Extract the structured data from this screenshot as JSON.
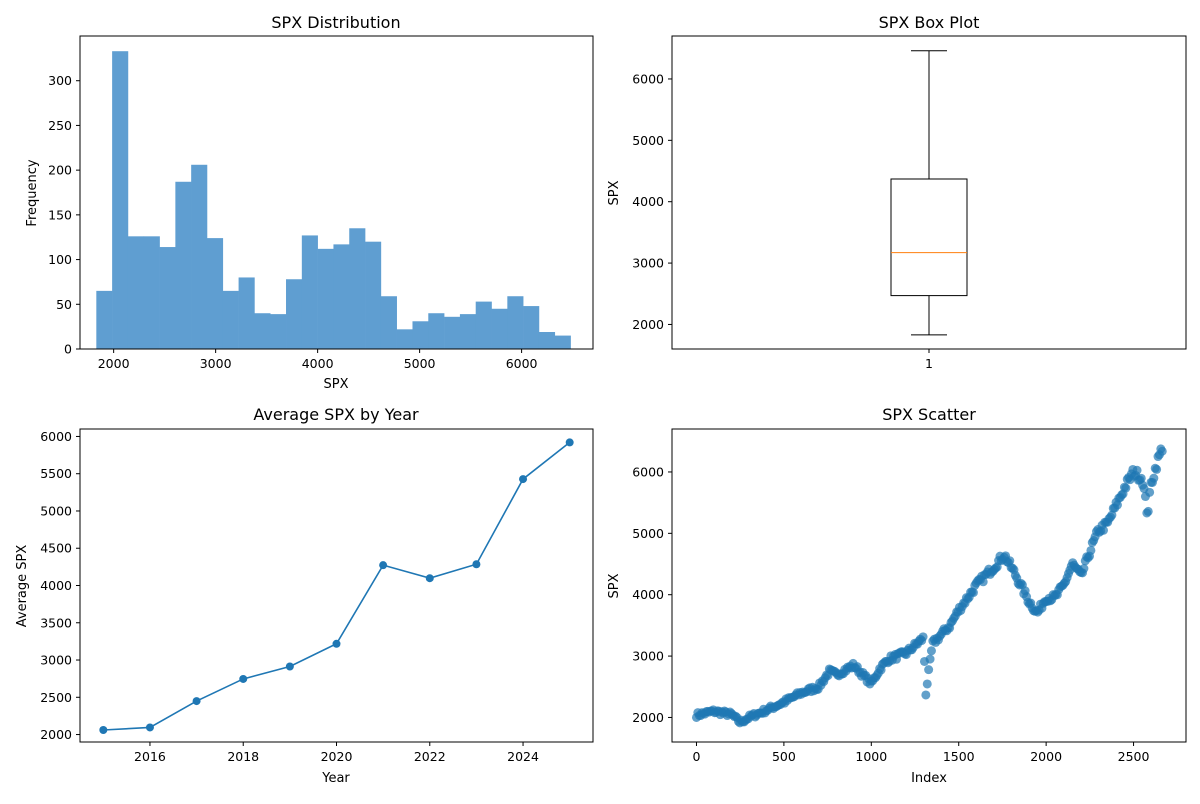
{
  "chart_data": [
    {
      "type": "bar",
      "subtype": "histogram",
      "title": "SPX Distribution",
      "xlabel": "SPX",
      "ylabel": "Frequency",
      "xlim": [
        1670,
        6700
      ],
      "ylim": [
        0,
        350
      ],
      "xticks": [
        "2000",
        "3000",
        "4000",
        "5000",
        "6000"
      ],
      "yticks": [
        "0",
        "50",
        "100",
        "150",
        "200",
        "250",
        "300"
      ],
      "bin_start": 1830,
      "bin_width": 155,
      "values": [
        65,
        333,
        126,
        126,
        114,
        187,
        206,
        124,
        65,
        80,
        40,
        39,
        78,
        127,
        112,
        117,
        135,
        120,
        59,
        22,
        31,
        40,
        36,
        39,
        53,
        45,
        59,
        48,
        19,
        15
      ],
      "color": "#5f9ed1",
      "grid": false
    },
    {
      "type": "box",
      "title": "SPX Box Plot",
      "xlabel": "",
      "ylabel": "SPX",
      "ylim": [
        1600,
        6700
      ],
      "xticks": [
        "1"
      ],
      "yticks": [
        "2000",
        "3000",
        "4000",
        "5000",
        "6000"
      ],
      "box": {
        "min": 1830,
        "q1": 2470,
        "median": 3170,
        "q3": 4370,
        "max": 6460
      },
      "median_color": "#ff7f0e",
      "grid": false
    },
    {
      "type": "line",
      "title": "Average SPX by Year",
      "xlabel": "Year",
      "ylabel": "Average SPX",
      "xlim": [
        2014.5,
        2025.5
      ],
      "ylim": [
        1900,
        6100
      ],
      "xticks": [
        "2016",
        "2018",
        "2020",
        "2022",
        "2024"
      ],
      "yticks": [
        "2000",
        "2500",
        "3000",
        "3500",
        "4000",
        "4500",
        "5000",
        "5500",
        "6000"
      ],
      "x": [
        2015,
        2016,
        2017,
        2018,
        2019,
        2020,
        2021,
        2022,
        2023,
        2024,
        2025
      ],
      "y": [
        2061,
        2095,
        2449,
        2746,
        2913,
        3218,
        4273,
        4098,
        4285,
        5428,
        5920
      ],
      "color": "#1f77b4",
      "grid": false
    },
    {
      "type": "scatter",
      "title": "SPX Scatter",
      "xlabel": "Index",
      "ylabel": "SPX",
      "xlim": [
        -140,
        2800
      ],
      "ylim": [
        1600,
        6700
      ],
      "xticks": [
        "0",
        "500",
        "1000",
        "1500",
        "2000",
        "2500"
      ],
      "yticks": [
        "2000",
        "3000",
        "4000",
        "5000",
        "6000"
      ],
      "trend_x": [
        0,
        100,
        200,
        250,
        300,
        400,
        500,
        600,
        700,
        760,
        800,
        900,
        1000,
        1050,
        1100,
        1200,
        1300,
        1310,
        1350,
        1400,
        1450,
        1500,
        1600,
        1700,
        1760,
        1820,
        1900,
        1950,
        2000,
        2050,
        2100,
        2150,
        2200,
        2250,
        2300,
        2350,
        2400,
        2450,
        2500,
        2550,
        2580,
        2600,
        2640,
        2670
      ],
      "trend_y": [
        2040,
        2100,
        2050,
        1920,
        2000,
        2120,
        2250,
        2400,
        2500,
        2750,
        2700,
        2850,
        2550,
        2800,
        2950,
        3050,
        3300,
        2350,
        3200,
        3350,
        3500,
        3750,
        4150,
        4450,
        4650,
        4350,
        3900,
        3700,
        3950,
        3950,
        4150,
        4500,
        4300,
        4700,
        5050,
        5150,
        5450,
        5750,
        6000,
        5900,
        5300,
        5800,
        6200,
        6450
      ],
      "color": "#1f77b4",
      "grid": false
    }
  ]
}
